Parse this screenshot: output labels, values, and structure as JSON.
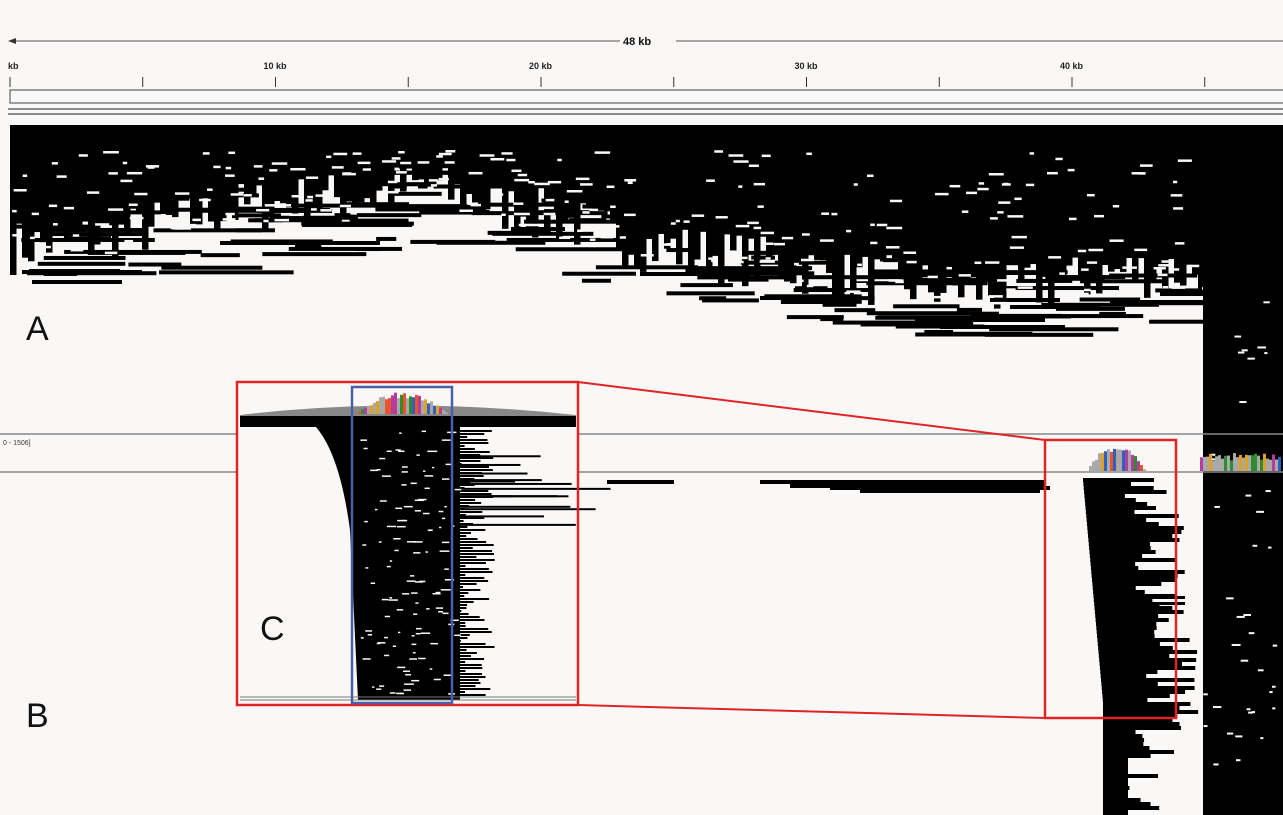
{
  "genome_view": {
    "scale_label": "48 kb",
    "ruler_ticks": [
      {
        "label": "kb",
        "pos_kb": 0
      },
      {
        "label": "",
        "pos_kb": 5
      },
      {
        "label": "10 kb",
        "pos_kb": 10
      },
      {
        "label": "",
        "pos_kb": 15
      },
      {
        "label": "20 kb",
        "pos_kb": 20
      },
      {
        "label": "",
        "pos_kb": 25
      },
      {
        "label": "30 kb",
        "pos_kb": 30
      },
      {
        "label": "",
        "pos_kb": 35
      },
      {
        "label": "40 kb",
        "pos_kb": 40
      },
      {
        "label": "",
        "pos_kb": 45
      }
    ],
    "coverage_range_label": "0 - 1506]"
  },
  "panels": {
    "a_label": "A",
    "b_label": "B",
    "c_label": "C"
  },
  "colors": {
    "read": "#000000",
    "zoom_box": "#e02424",
    "focus_box": "#4a5fa8",
    "background": "#faf8f7",
    "coverage_gray": "#a9a9a9",
    "snp_colors": [
      "#e8552a",
      "#2e8b2e",
      "#2f5fbf",
      "#e0a020",
      "#b33c9e"
    ]
  }
}
